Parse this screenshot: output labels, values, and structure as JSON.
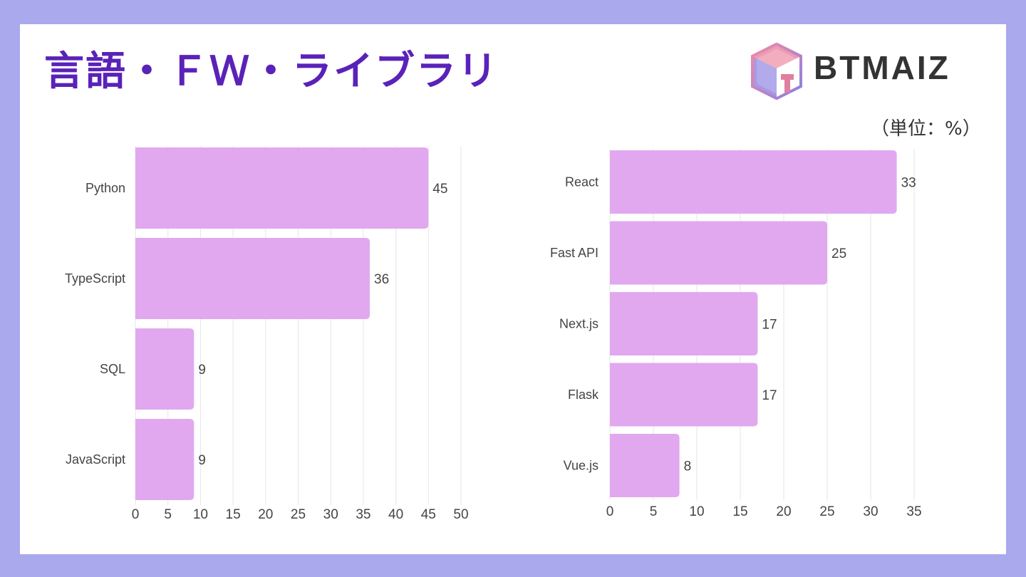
{
  "title": "言語・ＦＷ・ライブラリ",
  "logo": {
    "text": "BTMAIZ",
    "icon": "cube-logo-icon"
  },
  "unit_label": "（単位：%）",
  "colors": {
    "background": "#aaa9ee",
    "title": "#5a22b8",
    "bar": "#e1a8ef",
    "grid": "#e6e6e6"
  },
  "chart_data": [
    {
      "type": "bar",
      "orientation": "horizontal",
      "categories": [
        "Python",
        "TypeScript",
        "SQL",
        "JavaScript"
      ],
      "values": [
        45,
        36,
        9,
        9
      ],
      "xlim": [
        0,
        50
      ],
      "ticks": [
        0,
        5,
        10,
        15,
        20,
        25,
        30,
        35,
        40,
        45,
        50
      ],
      "grid": true
    },
    {
      "type": "bar",
      "orientation": "horizontal",
      "categories": [
        "React",
        "Fast API",
        "Next.js",
        "Flask",
        "Vue.js"
      ],
      "values": [
        33,
        25,
        17,
        17,
        8
      ],
      "xlim": [
        0,
        35
      ],
      "ticks": [
        0,
        5,
        10,
        15,
        20,
        25,
        30,
        35
      ],
      "grid": true
    }
  ]
}
